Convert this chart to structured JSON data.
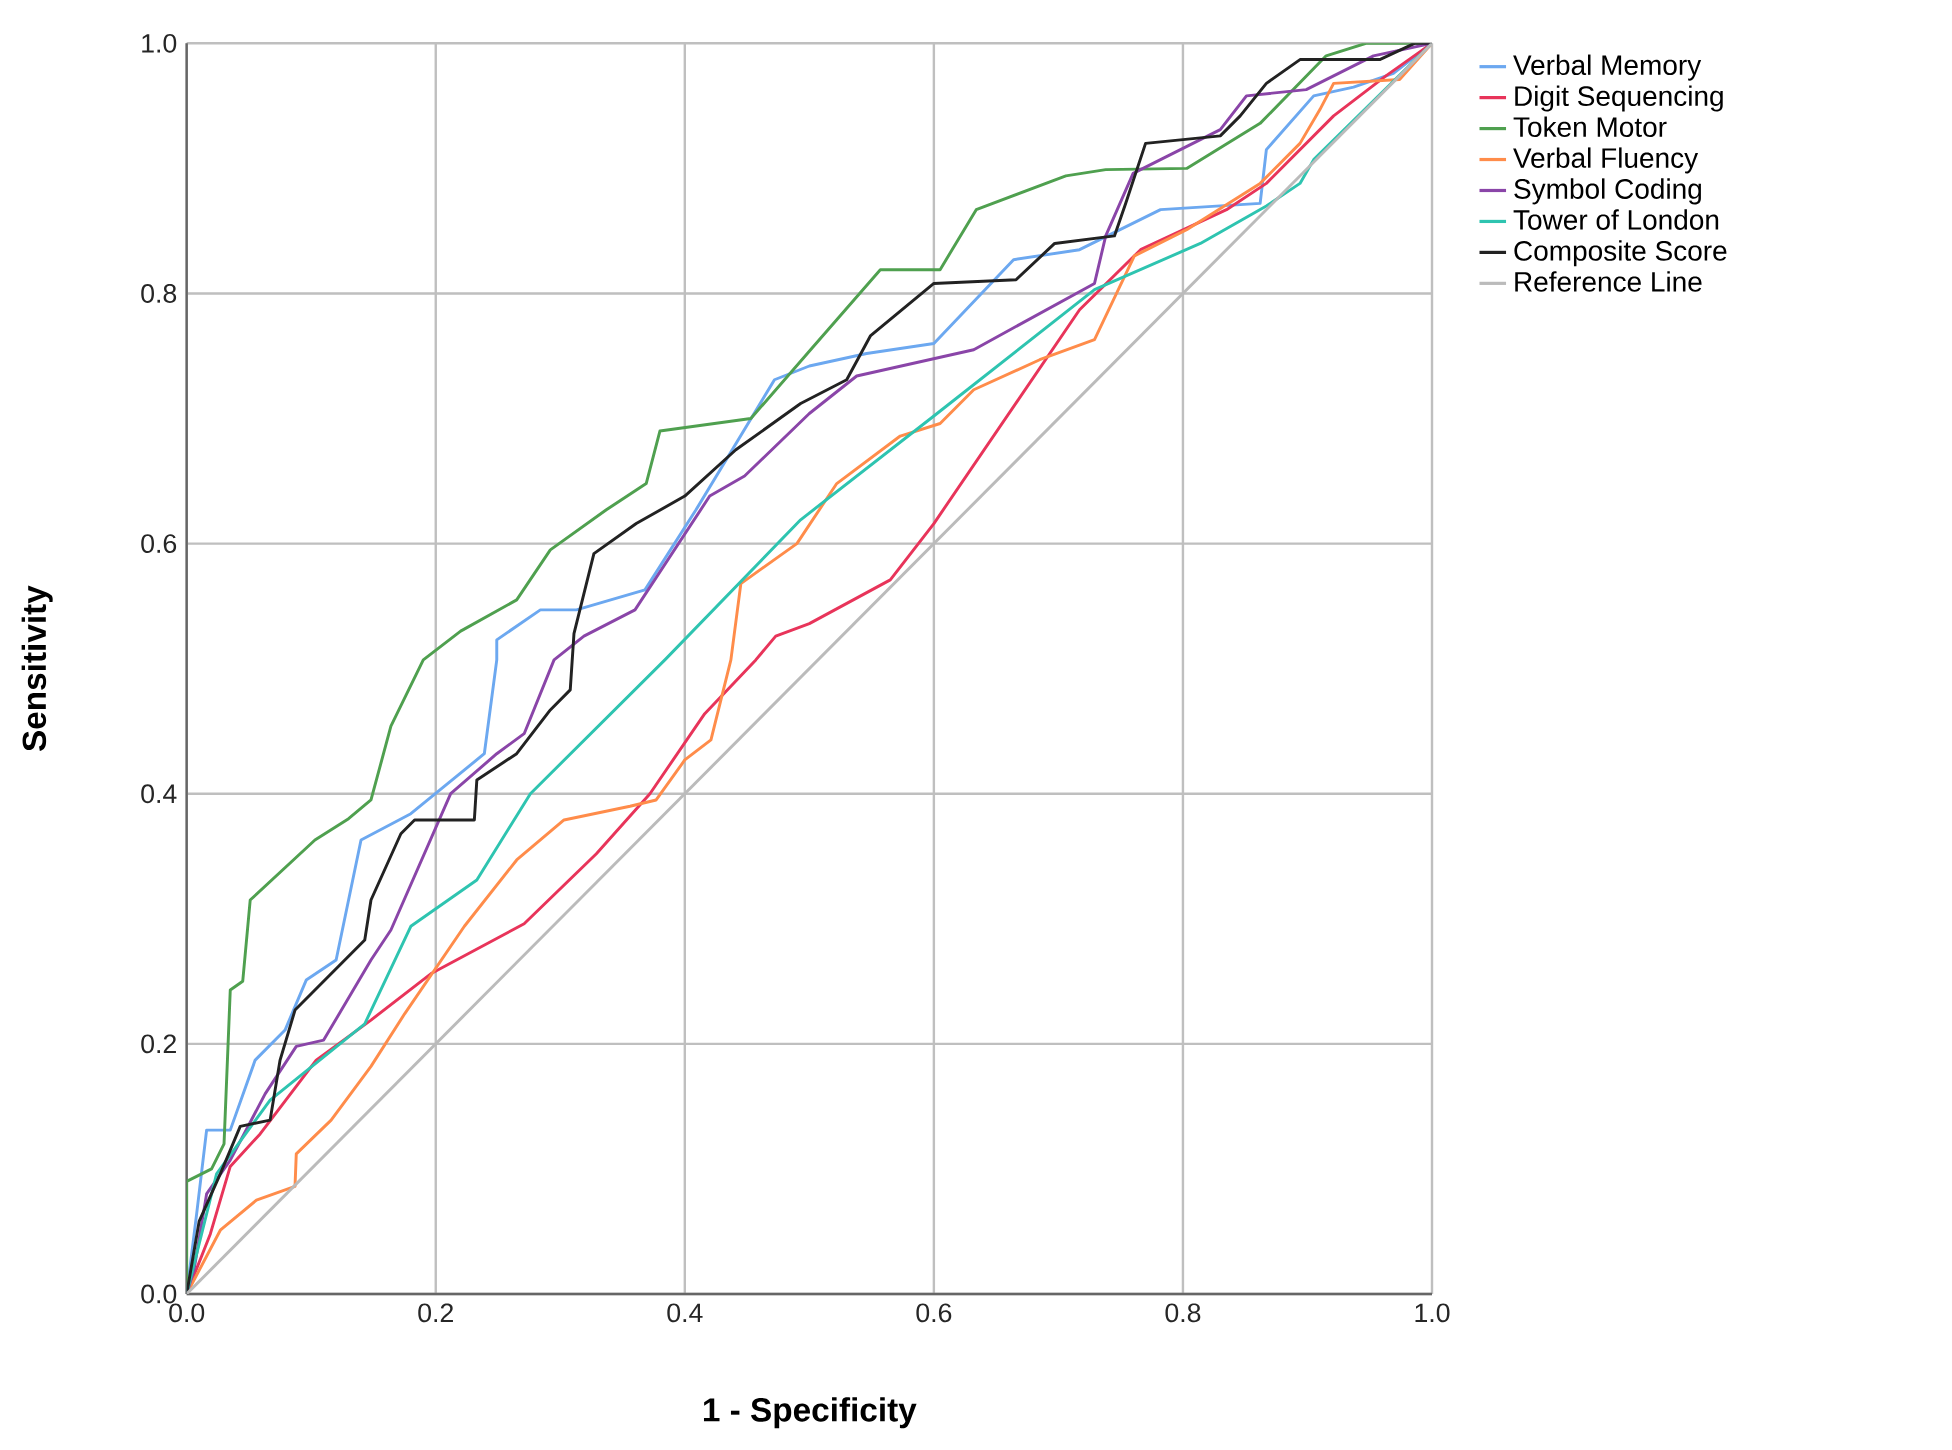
{
  "chart_data": {
    "type": "line",
    "xlabel": "1 - Specificity",
    "ylabel": "Sensitivity",
    "xlim": [
      0,
      1
    ],
    "ylim": [
      0,
      1
    ],
    "xticks": [
      {
        "value": 0,
        "label": "0.0"
      },
      {
        "value": 0.2,
        "label": "0.2"
      },
      {
        "value": 0.4,
        "label": "0.4"
      },
      {
        "value": 0.6,
        "label": "0.6"
      },
      {
        "value": 0.8,
        "label": "0.8"
      },
      {
        "value": 1,
        "label": "1.0"
      }
    ],
    "yticks": [
      {
        "value": 0,
        "label": "0.0"
      },
      {
        "value": 0.2,
        "label": "0.2"
      },
      {
        "value": 0.4,
        "label": "0.4"
      },
      {
        "value": 0.6,
        "label": "0.6"
      },
      {
        "value": 0.8,
        "label": "0.8"
      },
      {
        "value": 1,
        "label": "1.0"
      }
    ],
    "grid": true,
    "legend": "right",
    "series": [
      {
        "name": "Verbal Memory",
        "color": "#6ca8f0",
        "x": [
          0,
          0.008,
          0.016,
          0.035,
          0.055,
          0.079,
          0.096,
          0.12,
          0.14,
          0.18,
          0.239,
          0.249,
          0.249,
          0.284,
          0.313,
          0.368,
          0.409,
          0.472,
          0.5,
          0.546,
          0.6,
          0.664,
          0.717,
          0.782,
          0.862,
          0.867,
          0.905,
          0.937,
          0.969,
          1
        ],
        "values": [
          0,
          0.064,
          0.131,
          0.131,
          0.187,
          0.211,
          0.251,
          0.267,
          0.363,
          0.384,
          0.432,
          0.507,
          0.523,
          0.547,
          0.547,
          0.563,
          0.627,
          0.731,
          0.742,
          0.752,
          0.76,
          0.827,
          0.835,
          0.867,
          0.872,
          0.915,
          0.958,
          0.965,
          0.976,
          1
        ]
      },
      {
        "name": "Digit Sequencing",
        "color": "#e8345a",
        "x": [
          0,
          0.019,
          0.035,
          0.059,
          0.104,
          0.148,
          0.196,
          0.271,
          0.329,
          0.372,
          0.416,
          0.457,
          0.473,
          0.5,
          0.565,
          0.6,
          0.717,
          0.766,
          0.835,
          0.867,
          0.921,
          0.963,
          1
        ],
        "values": [
          0,
          0.048,
          0.102,
          0.128,
          0.187,
          0.219,
          0.256,
          0.296,
          0.352,
          0.4,
          0.464,
          0.507,
          0.526,
          0.536,
          0.571,
          0.616,
          0.787,
          0.835,
          0.867,
          0.888,
          0.942,
          0.974,
          1
        ]
      },
      {
        "name": "Token Motor",
        "color": "#4fa04f",
        "x": [
          0,
          0,
          0.02,
          0.03,
          0.035,
          0.045,
          0.051,
          0.103,
          0.13,
          0.148,
          0.164,
          0.19,
          0.22,
          0.265,
          0.292,
          0.337,
          0.369,
          0.38,
          0.453,
          0.501,
          0.557,
          0.605,
          0.634,
          0.706,
          0.738,
          0.803,
          0.862,
          0.915,
          0.947,
          1
        ],
        "values": [
          0,
          0.09,
          0.1,
          0.12,
          0.243,
          0.25,
          0.315,
          0.363,
          0.38,
          0.395,
          0.454,
          0.507,
          0.53,
          0.555,
          0.595,
          0.627,
          0.648,
          0.69,
          0.7,
          0.755,
          0.819,
          0.819,
          0.867,
          0.894,
          0.899,
          0.9,
          0.936,
          0.99,
          1,
          1
        ]
      },
      {
        "name": "Verbal Fluency",
        "color": "#ff8c4a",
        "x": [
          0,
          0.027,
          0.056,
          0.087,
          0.088,
          0.116,
          0.148,
          0.175,
          0.223,
          0.265,
          0.303,
          0.356,
          0.377,
          0.4,
          0.421,
          0.437,
          0.445,
          0.49,
          0.522,
          0.573,
          0.605,
          0.632,
          0.685,
          0.729,
          0.761,
          0.803,
          0.862,
          0.894,
          0.91,
          0.921,
          0.974,
          1
        ],
        "values": [
          0,
          0.051,
          0.075,
          0.086,
          0.112,
          0.139,
          0.182,
          0.224,
          0.294,
          0.347,
          0.379,
          0.39,
          0.395,
          0.427,
          0.443,
          0.507,
          0.568,
          0.6,
          0.648,
          0.686,
          0.696,
          0.723,
          0.747,
          0.763,
          0.83,
          0.851,
          0.888,
          0.92,
          0.947,
          0.968,
          0.971,
          1
        ]
      },
      {
        "name": "Symbol Coding",
        "color": "#8a45a8",
        "x": [
          0,
          0.006,
          0.016,
          0.035,
          0.063,
          0.088,
          0.11,
          0.148,
          0.164,
          0.212,
          0.249,
          0.271,
          0.295,
          0.319,
          0.36,
          0.42,
          0.448,
          0.5,
          0.538,
          0.632,
          0.729,
          0.738,
          0.76,
          0.83,
          0.851,
          0.899,
          0.921,
          0.953,
          1
        ],
        "values": [
          0,
          0.02,
          0.08,
          0.107,
          0.16,
          0.198,
          0.203,
          0.267,
          0.291,
          0.4,
          0.432,
          0.448,
          0.507,
          0.526,
          0.547,
          0.638,
          0.654,
          0.704,
          0.734,
          0.755,
          0.808,
          0.846,
          0.896,
          0.931,
          0.958,
          0.963,
          0.974,
          0.99,
          1
        ]
      },
      {
        "name": "Tower of London",
        "color": "#2ec4b0",
        "x": [
          0,
          0.024,
          0.067,
          0.143,
          0.18,
          0.233,
          0.276,
          0.384,
          0.493,
          0.6,
          0.729,
          0.814,
          0.867,
          0.894,
          0.905,
          1
        ],
        "values": [
          0,
          0.096,
          0.155,
          0.216,
          0.294,
          0.331,
          0.4,
          0.507,
          0.619,
          0.702,
          0.803,
          0.84,
          0.87,
          0.888,
          0.907,
          1
        ]
      },
      {
        "name": "Composite Score",
        "color": "#222222",
        "x": [
          0,
          0.01,
          0.027,
          0.043,
          0.067,
          0.075,
          0.087,
          0.1,
          0.143,
          0.148,
          0.172,
          0.183,
          0.231,
          0.233,
          0.265,
          0.292,
          0.308,
          0.311,
          0.327,
          0.361,
          0.4,
          0.441,
          0.493,
          0.53,
          0.549,
          0.6,
          0.666,
          0.697,
          0.745,
          0.754,
          0.77,
          0.83,
          0.846,
          0.867,
          0.894,
          0.958,
          0.986,
          1
        ],
        "values": [
          0,
          0.058,
          0.096,
          0.134,
          0.139,
          0.187,
          0.227,
          0.24,
          0.283,
          0.315,
          0.368,
          0.379,
          0.379,
          0.411,
          0.432,
          0.467,
          0.483,
          0.528,
          0.592,
          0.616,
          0.638,
          0.675,
          0.712,
          0.731,
          0.766,
          0.808,
          0.811,
          0.84,
          0.846,
          0.872,
          0.92,
          0.926,
          0.942,
          0.968,
          0.987,
          0.987,
          1,
          1
        ]
      },
      {
        "name": "Reference Line",
        "color": "#bbbbbb",
        "x": [
          0,
          1
        ],
        "values": [
          0,
          1
        ]
      }
    ]
  }
}
